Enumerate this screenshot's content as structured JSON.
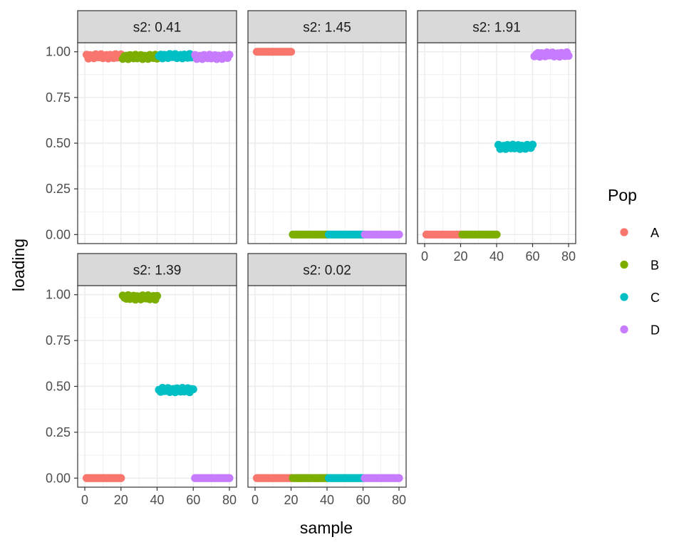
{
  "chart_data": {
    "type": "scatter",
    "facet_layout": "wrap",
    "xlabel": "sample",
    "ylabel": "loading",
    "xlim": [
      0,
      80
    ],
    "ylim": [
      0,
      1
    ],
    "x_ticks": [
      "0",
      "20",
      "40",
      "60",
      "80"
    ],
    "y_ticks": [
      "0.00",
      "0.25",
      "0.50",
      "0.75",
      "1.00"
    ],
    "grid": true,
    "legend": {
      "title": "Pop",
      "position": "right",
      "entries": [
        {
          "label": "A",
          "color": "#F8766D"
        },
        {
          "label": "B",
          "color": "#7CAE00"
        },
        {
          "label": "C",
          "color": "#00BFC4"
        },
        {
          "label": "D",
          "color": "#C77CFF"
        }
      ]
    },
    "panels": [
      {
        "strip": "s2: 0.41",
        "levels": {
          "A": 0.975,
          "B": 0.972,
          "C": 0.976,
          "D": 0.972
        }
      },
      {
        "strip": "s2: 1.45",
        "levels": {
          "A": 1.0,
          "B": 0.0,
          "C": 0.0,
          "D": 0.0
        }
      },
      {
        "strip": "s2: 1.91",
        "levels": {
          "A": 0.0,
          "B": 0.0,
          "C": 0.48,
          "D": 0.985
        }
      },
      {
        "strip": "s2: 1.39",
        "levels": {
          "A": 0.0,
          "B": 0.985,
          "C": 0.48,
          "D": 0.0
        }
      },
      {
        "strip": "s2: 0.02",
        "levels": {
          "A": 0.0,
          "B": 0.0,
          "C": 0.0,
          "D": 0.0
        }
      }
    ],
    "samples_per_pop": 20
  }
}
